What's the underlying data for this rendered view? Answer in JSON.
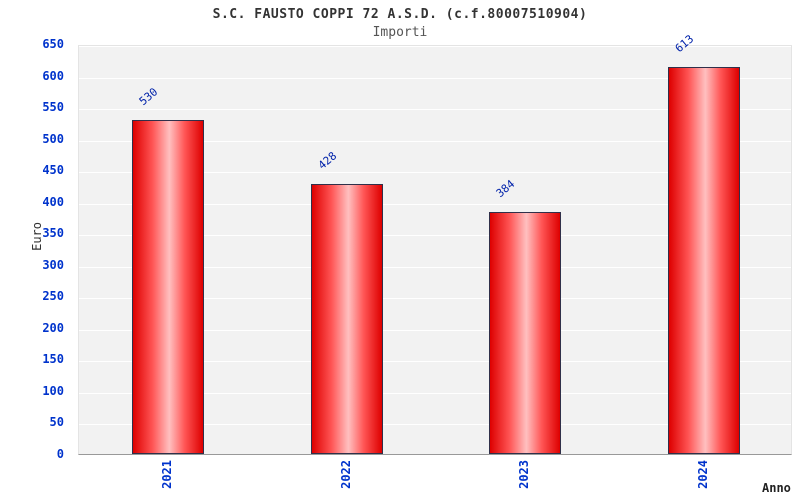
{
  "header": {
    "title": "S.C. FAUSTO COPPI 72 A.S.D. (c.f.80007510904)",
    "subtitle": "Importi"
  },
  "chart_data": {
    "type": "bar",
    "title": "S.C. FAUSTO COPPI 72 A.S.D. (c.f.80007510904)",
    "subtitle": "Importi",
    "categories": [
      "2021",
      "2022",
      "2023",
      "2024"
    ],
    "values": [
      530,
      428,
      384,
      613
    ],
    "xlabel": "Anno",
    "ylabel": "Euro",
    "ylim": [
      0,
      650
    ],
    "ytick_step": 50,
    "grid": true,
    "legend": "none",
    "bar_color": "#ff0000",
    "bar_gradient_edge": "#dd0000",
    "bar_gradient_center": "#ffc0c0",
    "tick_label_color": "#0033cc",
    "value_label_color": "#0022aa",
    "plot_background": "#f2f2f2",
    "gridline_color": "#ffffff"
  }
}
